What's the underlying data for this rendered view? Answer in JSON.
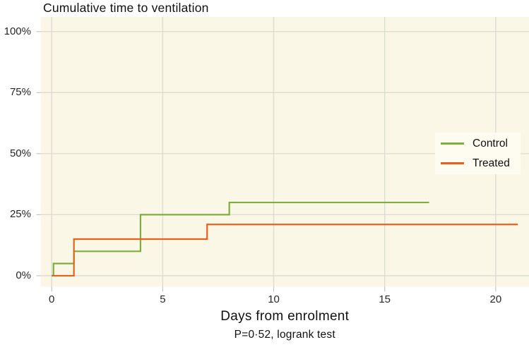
{
  "colors": {
    "background": "#ffffff",
    "panel": "#fbf7e6",
    "grid": "#dbdbd2",
    "tick": "#c7c7c0",
    "text": "#111111",
    "legend_background": "#fefcf1",
    "control": "#7fad3f",
    "treated": "#e8611c"
  },
  "chart_data": {
    "type": "line",
    "variant": "kaplan-meier-step",
    "title": "Cumulative time to ventilation",
    "xlabel": "Days from enrolment",
    "ylabel": "",
    "caption": "P=0·52, logrank test",
    "grid": true,
    "legend_position": "inside-right-middle",
    "y_unit": "percent",
    "xlim": [
      -0.5,
      21.5
    ],
    "ylim": [
      -4.5,
      106
    ],
    "x_ticks": [
      {
        "v": 0,
        "label": "0"
      },
      {
        "v": 5,
        "label": "5"
      },
      {
        "v": 10,
        "label": "10"
      },
      {
        "v": 15,
        "label": "15"
      },
      {
        "v": 20,
        "label": "20"
      }
    ],
    "y_ticks": [
      {
        "v": 0,
        "label": "0%"
      },
      {
        "v": 25,
        "label": "25%"
      },
      {
        "v": 50,
        "label": "50%"
      },
      {
        "v": 75,
        "label": "75%"
      },
      {
        "v": 100,
        "label": "100%"
      }
    ],
    "series": [
      {
        "name": "Control",
        "color": "#7fad3f",
        "start": [
          0,
          0
        ],
        "steps": [
          [
            0.08,
            5
          ],
          [
            1,
            10
          ],
          [
            4,
            25
          ],
          [
            8,
            30
          ]
        ],
        "end_x": 17
      },
      {
        "name": "Treated",
        "color": "#e8611c",
        "start": [
          0,
          0
        ],
        "steps": [
          [
            1,
            15
          ],
          [
            7,
            21
          ]
        ],
        "end_x": 21
      }
    ]
  }
}
